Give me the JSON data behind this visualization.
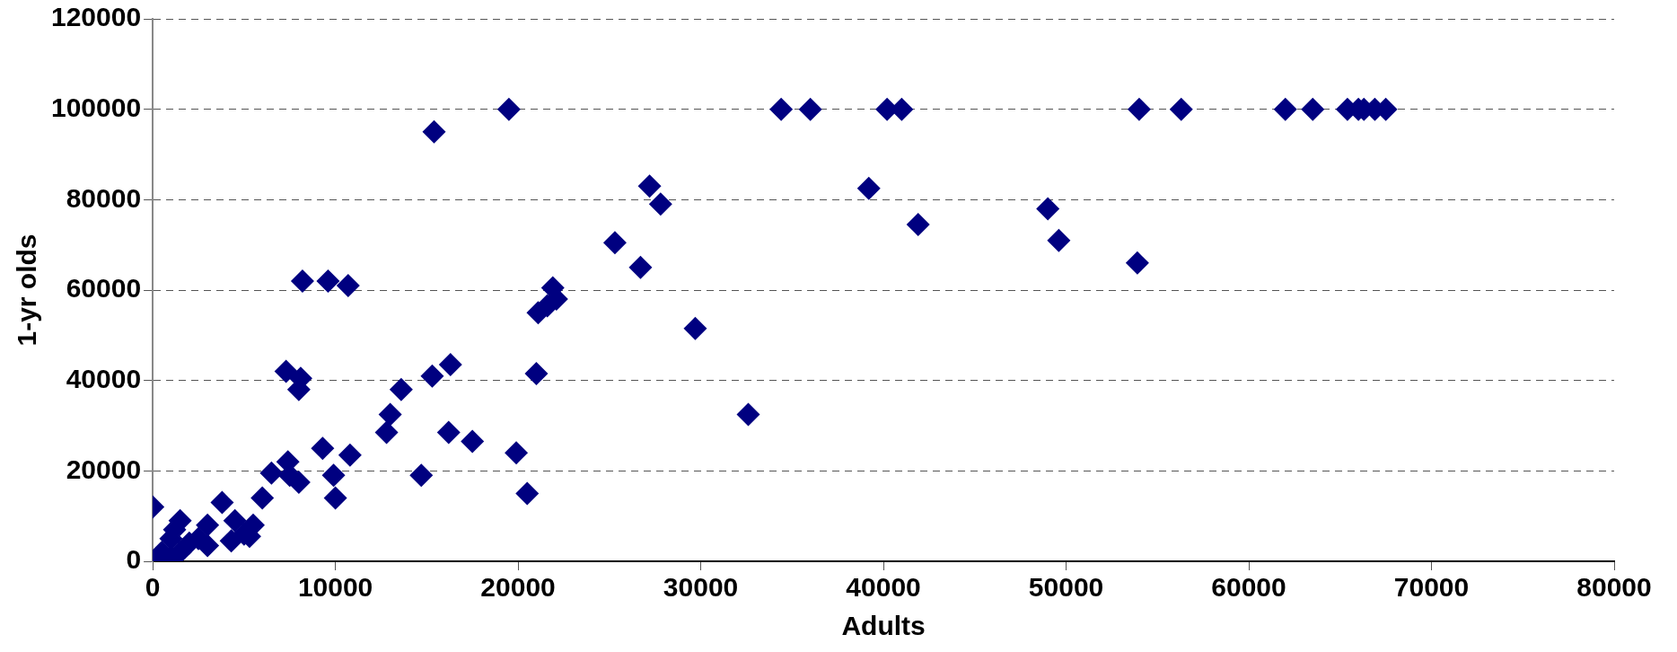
{
  "chart_data": {
    "type": "scatter",
    "xlabel": "Adults",
    "ylabel": "1-yr olds",
    "xlim": [
      0,
      80000
    ],
    "xticks": [
      0,
      10000,
      20000,
      30000,
      40000,
      50000,
      60000,
      70000,
      80000
    ],
    "ylim": [
      0,
      120000
    ],
    "yticks": [
      0,
      20000,
      40000,
      60000,
      80000,
      100000,
      120000
    ],
    "grid": "y",
    "legend": false,
    "marker": "diamond",
    "series": [
      {
        "color": "#000080",
        "x": [
          0,
          200,
          500,
          1000,
          1200,
          1500,
          1000,
          1500,
          2000,
          2500,
          3000,
          3000,
          3800,
          4300,
          4500,
          5000,
          5300,
          5500,
          6000,
          6500,
          7300,
          7400,
          7500,
          8000,
          8000,
          8100,
          8200,
          9300,
          9600,
          9900,
          10000,
          10700,
          10800,
          12800,
          13000,
          13600,
          14700,
          15300,
          15400,
          16200,
          16300,
          17500,
          19500,
          19900,
          20500,
          21000,
          21100,
          21600,
          21900,
          22100,
          25300,
          26700,
          27200,
          27800,
          29700,
          32600,
          34400,
          36000,
          39200,
          40200,
          41000,
          41900,
          49000,
          49600,
          53900,
          54000,
          56300,
          62000,
          63500,
          65400,
          66000,
          66300,
          66900,
          67500
        ],
        "values": [
          12000,
          500,
          2000,
          5000,
          7000,
          9000,
          1000,
          2000,
          4000,
          5000,
          8000,
          3500,
          13000,
          4500,
          9000,
          6000,
          5500,
          8000,
          14000,
          19500,
          42000,
          22000,
          19000,
          17500,
          38000,
          40500,
          62000,
          25000,
          62000,
          19000,
          14000,
          61000,
          23500,
          28500,
          32500,
          38000,
          19000,
          41000,
          95000,
          28500,
          43500,
          26500,
          100000,
          24000,
          15000,
          41500,
          55000,
          56500,
          60500,
          58000,
          70500,
          65000,
          83000,
          79000,
          51500,
          32500,
          100000,
          100000,
          82500,
          100000,
          100000,
          74500,
          78000,
          71000,
          66000,
          100000,
          100000,
          100000,
          100000,
          100000,
          100000,
          100000,
          100000,
          100000
        ]
      }
    ]
  }
}
